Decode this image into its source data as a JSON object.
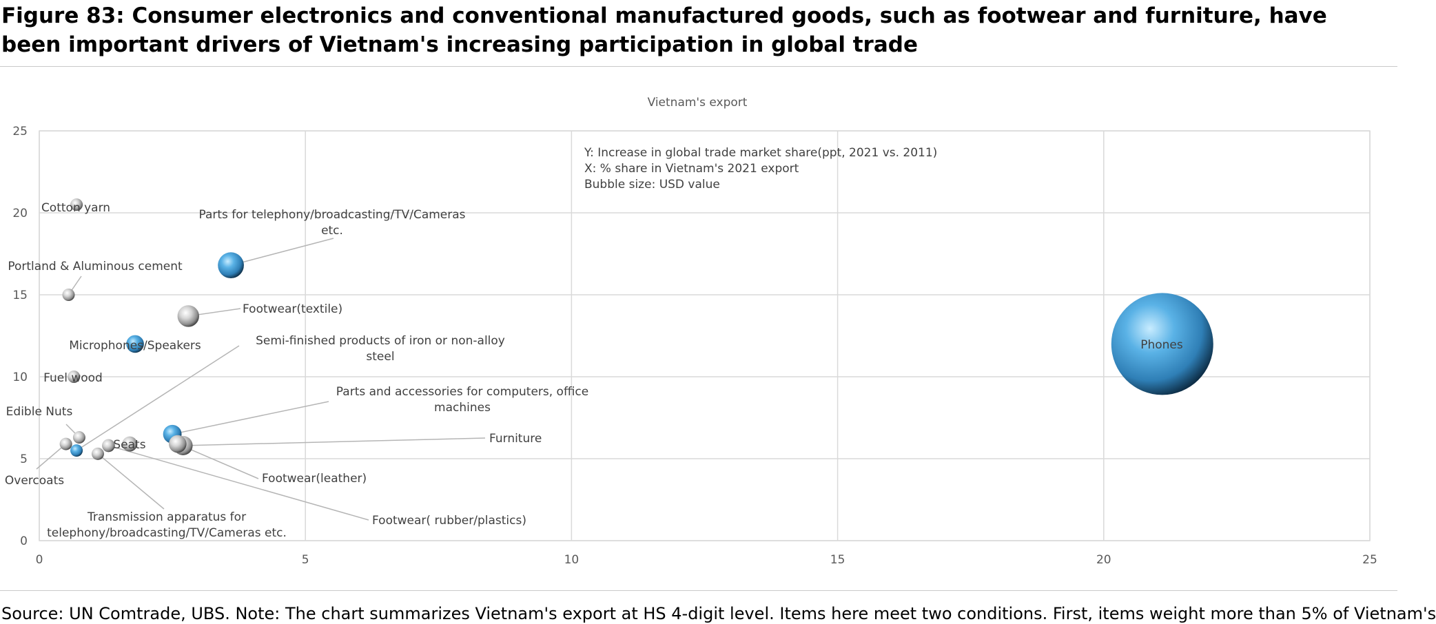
{
  "figure_title": "Figure 83: Consumer electronics and conventional manufactured goods, such as footwear and furniture, have been important drivers of Vietnam's increasing participation in global trade",
  "source_note": "Source: UN Comtrade, UBS. Note: The chart summarizes Vietnam's export at HS 4-digit level. Items here meet two conditions. First, items weight more than 5% of Vietnam's",
  "colors": {
    "blue_bubble": "#4ea3d9",
    "grey_bubble": "#b8b8b8",
    "gridline": "#d9d9d9",
    "text": "#595959"
  },
  "chart_data": {
    "type": "bubble",
    "title": "Vietnam's export",
    "annotation": [
      "Y: Increase in global trade market share(ppt, 2021 vs. 2011)",
      "X: % share in Vietnam's 2021 export",
      "Bubble size: USD value"
    ],
    "xlim": [
      0,
      25
    ],
    "ylim": [
      0,
      25
    ],
    "xticks": [
      0,
      5,
      10,
      15,
      20,
      25
    ],
    "yticks": [
      0,
      5,
      10,
      15,
      20,
      25
    ],
    "grid": true,
    "points": [
      {
        "label": "Phones",
        "x": 21.1,
        "y": 12.0,
        "size": 100,
        "color": "blue"
      },
      {
        "label": "Parts for telephony/broadcasting/TV/Cameras etc.",
        "x": 3.6,
        "y": 16.8,
        "size": 6.5,
        "color": "blue"
      },
      {
        "label": "Footwear(textile)",
        "x": 2.8,
        "y": 13.7,
        "size": 4.5,
        "color": "grey"
      },
      {
        "label": "Microphones/Speakers",
        "x": 1.8,
        "y": 12.0,
        "size": 3.0,
        "color": "blue"
      },
      {
        "label": "Cotton yarn",
        "x": 0.7,
        "y": 20.5,
        "size": 0.8,
        "color": "grey"
      },
      {
        "label": "Portland & Aluminous cement",
        "x": 0.55,
        "y": 15.0,
        "size": 0.6,
        "color": "grey"
      },
      {
        "label": "Fuel wood",
        "x": 0.65,
        "y": 10.0,
        "size": 0.7,
        "color": "grey"
      },
      {
        "label": "Edible Nuts",
        "x": 0.75,
        "y": 6.3,
        "size": 1.0,
        "color": "grey"
      },
      {
        "label": "Overcoats",
        "x": 0.5,
        "y": 5.9,
        "size": 0.6,
        "color": "grey"
      },
      {
        "label": "Semi-finished products of iron or non-alloy steel",
        "x": 0.7,
        "y": 5.5,
        "size": 0.7,
        "color": "blue"
      },
      {
        "label": "Transmission apparatus for telephony/broadcasting/TV/Cameras etc.",
        "x": 1.1,
        "y": 5.3,
        "size": 1.2,
        "color": "grey"
      },
      {
        "label": "Seats",
        "x": 1.7,
        "y": 5.9,
        "size": 2.2,
        "color": "grey"
      },
      {
        "label": "Parts and accessories for computers, office machines",
        "x": 2.5,
        "y": 6.5,
        "size": 3.3,
        "color": "blue"
      },
      {
        "label": "Furniture",
        "x": 2.7,
        "y": 5.8,
        "size": 3.6,
        "color": "grey"
      },
      {
        "label": "Footwear(leather)",
        "x": 2.6,
        "y": 5.9,
        "size": 3.0,
        "color": "grey"
      },
      {
        "label": "Footwear( rubber/plastics)",
        "x": 1.3,
        "y": 5.8,
        "size": 1.6,
        "color": "grey"
      }
    ]
  }
}
